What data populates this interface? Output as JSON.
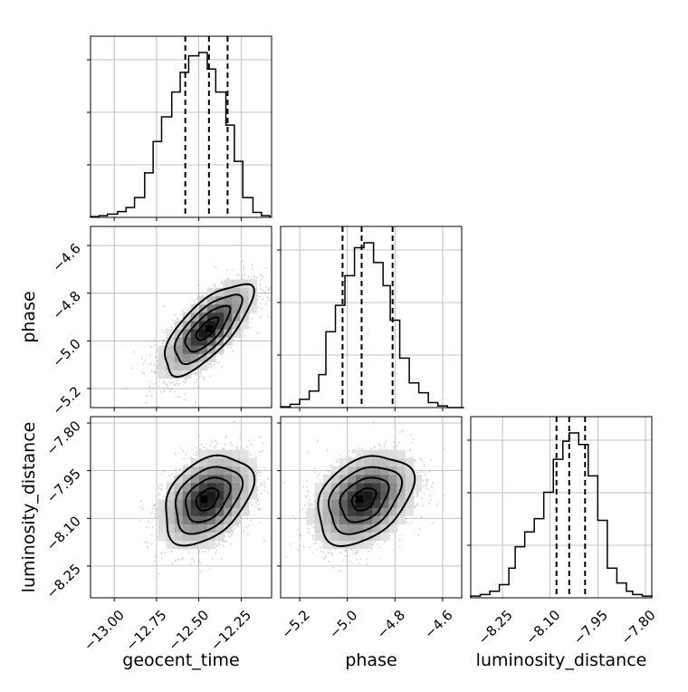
{
  "chart_data": {
    "type": "corner",
    "parameters": [
      "geocent_time",
      "phase",
      "luminosity_distance"
    ],
    "ranges": {
      "geocent_time": [
        -13.14,
        -12.07
      ],
      "phase": [
        -5.28,
        -4.52
      ],
      "luminosity_distance": [
        -8.35,
        -7.78
      ]
    },
    "ticks": {
      "geocent_time": [
        -13.0,
        -12.75,
        -12.5,
        -12.25
      ],
      "geocent_time_labels": [
        "−13.00",
        "−12.75",
        "−12.50",
        "−12.25"
      ],
      "phase": [
        -5.2,
        -5.0,
        -4.8,
        -4.6
      ],
      "phase_labels": [
        "−5.2",
        "−5.0",
        "−4.8",
        "−4.6"
      ],
      "luminosity_distance": [
        -8.25,
        -8.1,
        -7.95,
        -7.8
      ],
      "luminosity_distance_labels": [
        "−8.25",
        "−8.10",
        "−7.95",
        "−7.80"
      ]
    },
    "quantiles": {
      "geocent_time": [
        -12.58,
        -12.44,
        -12.33
      ],
      "phase": [
        -5.02,
        -4.94,
        -4.81
      ],
      "luminosity_distance": [
        -8.08,
        -8.04,
        -7.99
      ]
    },
    "histograms": {
      "geocent_time": {
        "edges": [
          -13.14,
          -13.09,
          -13.04,
          -12.98,
          -12.93,
          -12.88,
          -12.82,
          -12.77,
          -12.72,
          -12.66,
          -12.61,
          -12.56,
          -12.5,
          -12.45,
          -12.4,
          -12.34,
          -12.29,
          -12.24,
          -12.18,
          -12.13,
          -12.08
        ],
        "counts": [
          0.005,
          0.01,
          0.02,
          0.035,
          0.06,
          0.12,
          0.27,
          0.46,
          0.61,
          0.76,
          0.88,
          0.98,
          1.0,
          0.9,
          0.76,
          0.56,
          0.34,
          0.12,
          0.03,
          0.01
        ]
      },
      "phase": {
        "edges": [
          -5.28,
          -5.24,
          -5.2,
          -5.16,
          -5.12,
          -5.09,
          -5.05,
          -5.01,
          -4.97,
          -4.93,
          -4.89,
          -4.85,
          -4.82,
          -4.78,
          -4.74,
          -4.7,
          -4.66,
          -4.62,
          -4.58,
          -4.55,
          -4.51
        ],
        "counts": [
          0.005,
          0.02,
          0.05,
          0.1,
          0.2,
          0.46,
          0.62,
          0.8,
          0.97,
          1.0,
          0.88,
          0.74,
          0.53,
          0.3,
          0.15,
          0.09,
          0.03,
          0.01,
          0.0,
          0.0
        ]
      },
      "luminosity_distance": {
        "edges": [
          -8.35,
          -8.32,
          -8.29,
          -8.26,
          -8.23,
          -8.21,
          -8.18,
          -8.15,
          -8.12,
          -8.09,
          -8.06,
          -8.04,
          -8.01,
          -7.98,
          -7.95,
          -7.92,
          -7.89,
          -7.86,
          -7.84,
          -7.81,
          -7.78
        ],
        "counts": [
          0.01,
          0.02,
          0.04,
          0.08,
          0.18,
          0.31,
          0.4,
          0.48,
          0.64,
          0.84,
          0.95,
          1.0,
          0.93,
          0.74,
          0.47,
          0.18,
          0.09,
          0.04,
          0.02,
          0.01
        ]
      }
    },
    "joint": [
      {
        "x": "geocent_time",
        "y": "phase",
        "mean": [
          -12.45,
          -4.95
        ],
        "sd": [
          0.13,
          0.095
        ],
        "corr": 0.72,
        "peak": [
          -12.44,
          -4.95
        ]
      },
      {
        "x": "geocent_time",
        "y": "luminosity_distance",
        "mean": [
          -12.45,
          -8.04
        ],
        "sd": [
          0.13,
          0.07
        ],
        "corr": 0.38,
        "peak": [
          -12.47,
          -8.04
        ]
      },
      {
        "x": "phase",
        "y": "luminosity_distance",
        "mean": [
          -4.93,
          -8.04
        ],
        "sd": [
          0.1,
          0.07
        ],
        "corr": 0.35,
        "peak": [
          -4.95,
          -8.04
        ]
      }
    ],
    "contour_levels_sigma": [
      0.5,
      1.0,
      1.5,
      2.0
    ],
    "grid": true,
    "colors": {
      "line": "#000000",
      "grid": "#b0b0b0",
      "scatter": "#9a9a9a"
    }
  }
}
